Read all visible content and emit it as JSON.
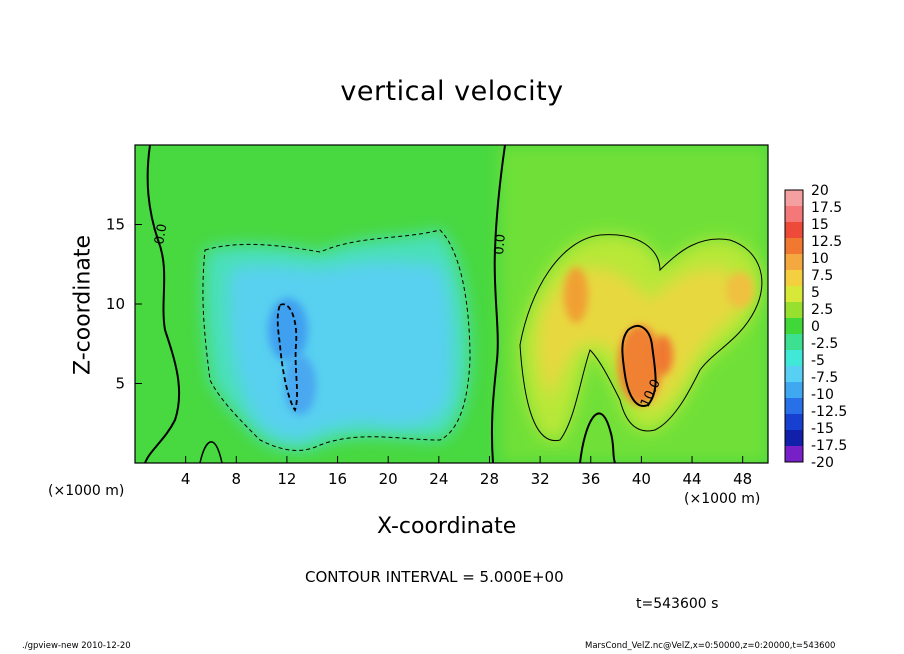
{
  "chart_data": {
    "type": "heatmap",
    "title": "vertical velocity",
    "xlabel": "X-coordinate",
    "ylabel": "Z-coordinate",
    "x_unit_label": "(×1000 m)",
    "xlim": [
      0,
      50
    ],
    "ylim": [
      0,
      20
    ],
    "x_ticks": [
      4,
      8,
      12,
      16,
      20,
      24,
      28,
      32,
      36,
      40,
      44,
      48
    ],
    "y_ticks": [
      5,
      10,
      15
    ],
    "colorbar": {
      "levels": [
        "20",
        "17.5",
        "15",
        "12.5",
        "10",
        "7.5",
        "5",
        "2.5",
        "0",
        "-2.5",
        "-5",
        "-7.5",
        "-10",
        "-12.5",
        "-15",
        "-17.5",
        "-20"
      ],
      "colors": [
        "#f4a0a0",
        "#f47878",
        "#ee4a3a",
        "#f07830",
        "#f4a840",
        "#f4d040",
        "#d8e838",
        "#98e030",
        "#40d838",
        "#3ce090",
        "#40e8d8",
        "#58d0f4",
        "#40a8f0",
        "#2870e8",
        "#1840d0",
        "#1020a8",
        "#7820c8"
      ]
    },
    "contour_labels": [
      "0.0",
      "0.0",
      "10.0"
    ],
    "features": [
      {
        "name": "downdraft region",
        "x": 15,
        "z": 8.5,
        "w_min": -10
      },
      {
        "name": "updraft maximum",
        "x": 40,
        "z": 6,
        "w_max": 10
      },
      {
        "name": "updraft core",
        "x": 35,
        "z": 10.5,
        "w_max": 8
      }
    ]
  },
  "contour_interval_text": "CONTOUR INTERVAL = 5.000E+00",
  "time_text": "t=543600  s",
  "footer_left": "./gpview-new   2010-12-20",
  "footer_right": "MarsCond_VelZ.nc@VelZ,x=0:50000,z=0:20000,t=543600",
  "colors": {
    "background": "#40d838",
    "axis": "#000000"
  }
}
